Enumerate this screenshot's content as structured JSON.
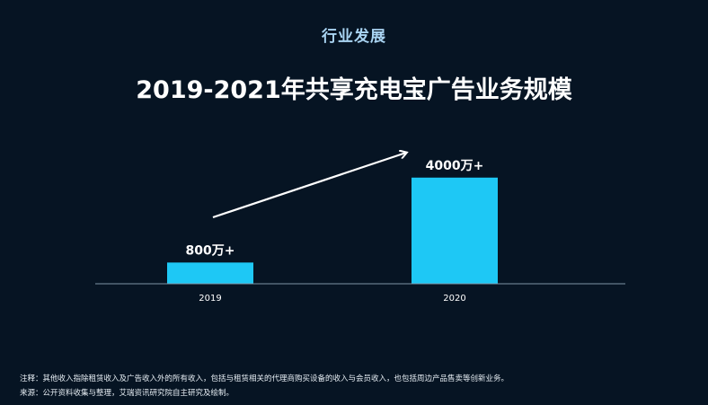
{
  "header": {
    "section": "行业发展",
    "title": "2019-2021年共享充电宝广告业务规模"
  },
  "chart_data": {
    "type": "bar",
    "categories": [
      "2019",
      "2020"
    ],
    "values": [
      800,
      4000
    ],
    "value_labels": [
      "800万+",
      "4000万+"
    ],
    "unit": "万",
    "ylim": [
      0,
      4500
    ],
    "title": "2019-2021年共享充电宝广告业务规模",
    "xlabel": "",
    "ylabel": "",
    "grid": false,
    "legend": "none",
    "trend_arrow": true
  },
  "colors": {
    "background": "#061423",
    "bar": "#1ec8f5",
    "axis": "#7f93a6",
    "section_label": "#a9d4f2",
    "text": "#ffffff"
  },
  "footnotes": {
    "note": "注释：其他收入指除租赁收入及广告收入外的所有收入，包括与租赁相关的代理商购买设备的收入与会员收入，也包括周边产品售卖等创新业务。",
    "source": "来源：公开资料收集与整理，艾瑞资讯研究院自主研究及绘制。"
  }
}
